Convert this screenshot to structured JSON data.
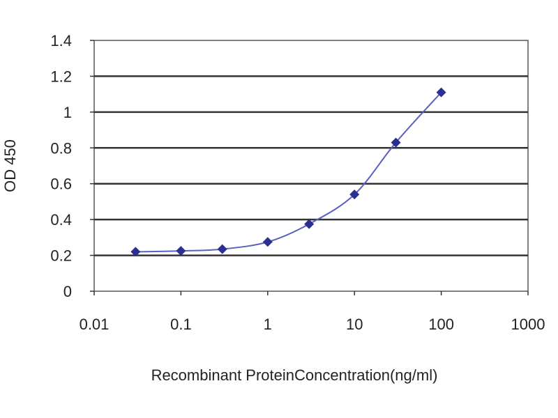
{
  "chart_data": {
    "type": "line",
    "title": "",
    "xlabel": "Recombinant ProteinConcentration(ng/ml)",
    "ylabel": "OD 450",
    "xscale": "log",
    "xlim": [
      0.01,
      1000
    ],
    "ylim": [
      0,
      1.4
    ],
    "xticks": [
      "0.01",
      "0.1",
      "1",
      "10",
      "100",
      "1000"
    ],
    "xtick_values": [
      0.01,
      0.1,
      1,
      10,
      100,
      1000
    ],
    "yticks": [
      "0",
      "0.2",
      "0.4",
      "0.6",
      "0.8",
      "1",
      "1.2",
      "1.4"
    ],
    "ytick_values": [
      0,
      0.2,
      0.4,
      0.6,
      0.8,
      1,
      1.2,
      1.4
    ],
    "grid": "horizontal",
    "legend": "none",
    "series": [
      {
        "x": [
          0.03,
          0.1,
          0.3,
          1,
          3,
          10,
          30,
          100
        ],
        "y": [
          0.22,
          0.225,
          0.235,
          0.275,
          0.375,
          0.54,
          0.83,
          1.11
        ],
        "color": "#2b2f8f",
        "marker": "diamond"
      }
    ]
  }
}
